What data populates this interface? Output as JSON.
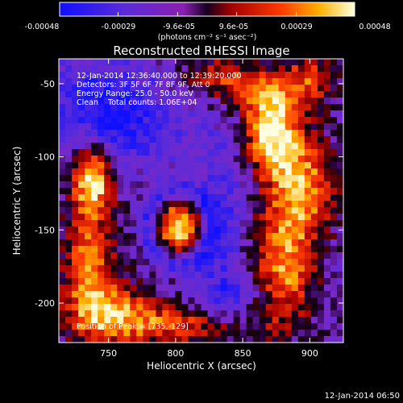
{
  "chart_data": {
    "type": "heatmap",
    "title": "Reconstructed RHESSI Image",
    "xlabel": "Heliocentric X (arcsec)",
    "ylabel": "Heliocentric Y (arcsec)",
    "xlim": [
      713,
      925
    ],
    "ylim": [
      -227,
      -33
    ],
    "x_ticks": [
      750,
      800,
      850,
      900
    ],
    "y_ticks": [
      -200,
      -150,
      -100,
      -50
    ],
    "colorbar": {
      "ticks": [
        "-0.00048",
        "-0.00029",
        "-9.6e-05",
        "9.6e-05",
        "0.00029",
        "0.00048"
      ],
      "tick_values": [
        -0.00048,
        -0.00029,
        -9.6e-05,
        9.6e-05,
        0.00029,
        0.00048
      ],
      "range": [
        -0.00048,
        0.00048
      ]
    },
    "colorbar_unit": "(photons cm⁻² s⁻¹ asec⁻²)",
    "annotations": [
      "12-Jan-2014 12:36:40.000 to 12:39:20.000",
      "Detectors: 3F 5F 6F 7F 8F 9F, Att 0",
      "Energy Range: 25.0 - 50.0 keV",
      "Clean    Total counts: 1.06E+04"
    ],
    "peak_label": "Position of Peak = [735,-129]",
    "peak_position": [
      735,
      -129
    ],
    "timestamp": "12-Jan-2014 06:50",
    "colors": {
      "background": "#000000",
      "text": "#ffffff",
      "map_low": "#3a3aff",
      "map_mid": "#8a2be2",
      "map_high": "#ffffa0"
    }
  }
}
